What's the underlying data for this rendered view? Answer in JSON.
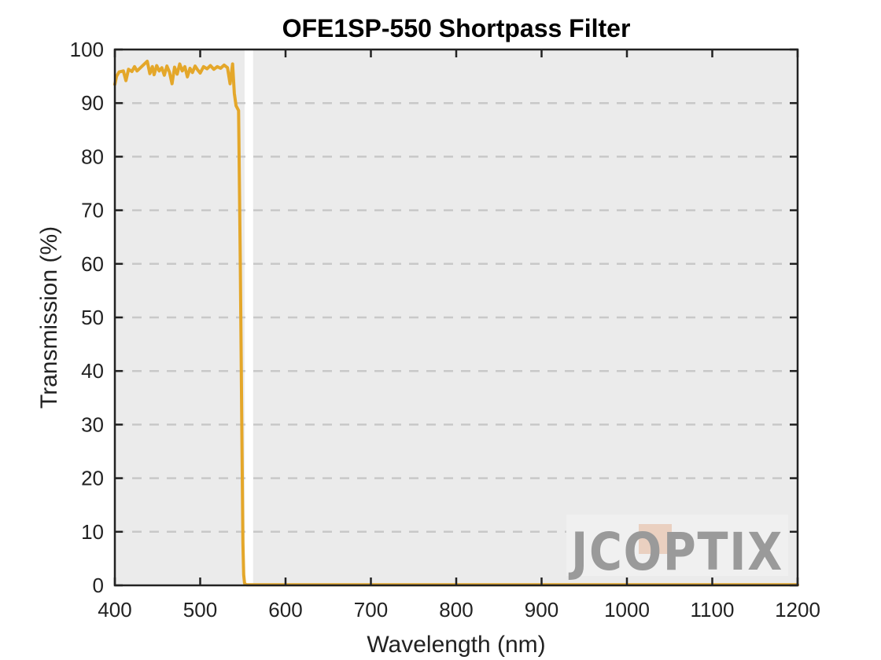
{
  "chart_data": {
    "type": "line",
    "title": "OFE1SP-550 Shortpass Filter",
    "xlabel": "Wavelength (nm)",
    "ylabel": "Transmission (%)",
    "xlim": [
      400,
      1200
    ],
    "ylim": [
      0,
      100
    ],
    "xticks": [
      400,
      500,
      600,
      700,
      800,
      900,
      1000,
      1100,
      1200
    ],
    "yticks": [
      0,
      10,
      20,
      30,
      40,
      50,
      60,
      70,
      80,
      90,
      100
    ],
    "grid": "horizontal-dashed",
    "series": [
      {
        "color": "#e4a72a",
        "x": [
          400,
          402,
          405,
          410,
          413,
          416,
          420,
          423,
          426,
          430,
          434,
          438,
          441,
          444,
          446,
          449,
          452,
          455,
          458,
          461,
          464,
          467,
          470,
          473,
          476,
          479,
          482,
          485,
          488,
          491,
          494,
          497,
          500,
          504,
          508,
          512,
          516,
          520,
          524,
          528,
          532,
          535,
          538,
          540,
          542,
          545,
          547,
          549,
          550,
          551,
          552,
          553,
          555,
          560,
          600,
          700,
          800,
          900,
          1000,
          1100,
          1200
        ],
        "y": [
          93.5,
          95.0,
          95.8,
          96.0,
          94.2,
          96.3,
          95.9,
          96.8,
          96.0,
          96.6,
          97.2,
          97.8,
          95.5,
          96.8,
          95.3,
          97.0,
          96.0,
          96.6,
          95.2,
          96.9,
          95.8,
          93.6,
          96.7,
          95.4,
          97.3,
          96.0,
          96.8,
          94.9,
          96.5,
          95.7,
          96.9,
          96.2,
          95.6,
          96.8,
          96.4,
          97.0,
          96.3,
          96.8,
          96.5,
          97.1,
          96.6,
          93.6,
          97.3,
          91.8,
          89.5,
          88.6,
          60.0,
          25.0,
          8.0,
          2.0,
          0.4,
          0.2,
          0.1,
          0.1,
          0.1,
          0.1,
          0.1,
          0.1,
          0.1,
          0.1,
          0.1
        ]
      }
    ]
  },
  "watermark": {
    "text": "JCOPTIX",
    "text_color": "#9a9a9a",
    "accent_color": "#e8c8b4"
  }
}
